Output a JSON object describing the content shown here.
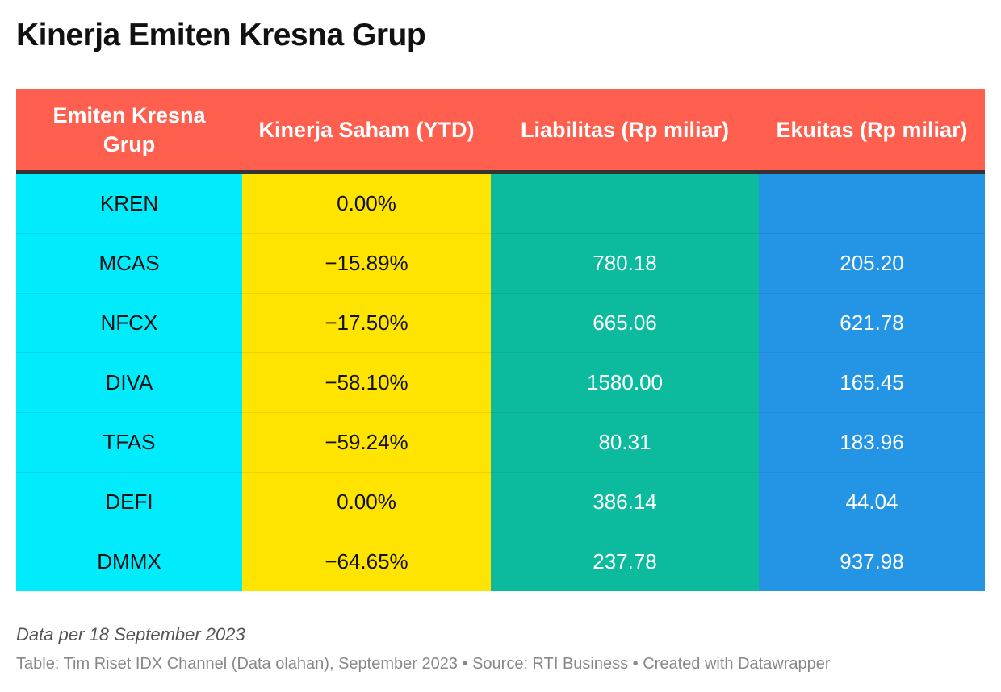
{
  "title": "Kinerja Emiten Kresna Grup",
  "note": "Data per 18 September 2023",
  "source": "Table: Tim Riset IDX Channel (Data olahan), September 2023 • Source: RTI Business • Created with Datawrapper",
  "colors": {
    "header": "#ff5f4e",
    "col_emiten": "#00ebfc",
    "col_kinerja": "#ffe400",
    "col_liabilitas": "#0cbb9d",
    "col_ekuitas": "#2395e4"
  },
  "chart_data": {
    "type": "table",
    "title": "Kinerja Emiten Kresna Grup",
    "columns": [
      "Emiten Kresna Grup",
      "Kinerja Saham (YTD)",
      "Liabilitas (Rp miliar)",
      "Ekuitas (Rp miliar)"
    ],
    "rows": [
      [
        "KREN",
        "0.00%",
        "",
        ""
      ],
      [
        "MCAS",
        "−15.89%",
        "780.18",
        "205.20"
      ],
      [
        "NFCX",
        "−17.50%",
        "665.06",
        "621.78"
      ],
      [
        "DIVA",
        "−58.10%",
        "1580.00",
        "165.45"
      ],
      [
        "TFAS",
        "−59.24%",
        "80.31",
        "183.96"
      ],
      [
        "DEFI",
        "0.00%",
        "386.14",
        "44.04"
      ],
      [
        "DMMX",
        "−64.65%",
        "237.78",
        "937.98"
      ]
    ]
  }
}
